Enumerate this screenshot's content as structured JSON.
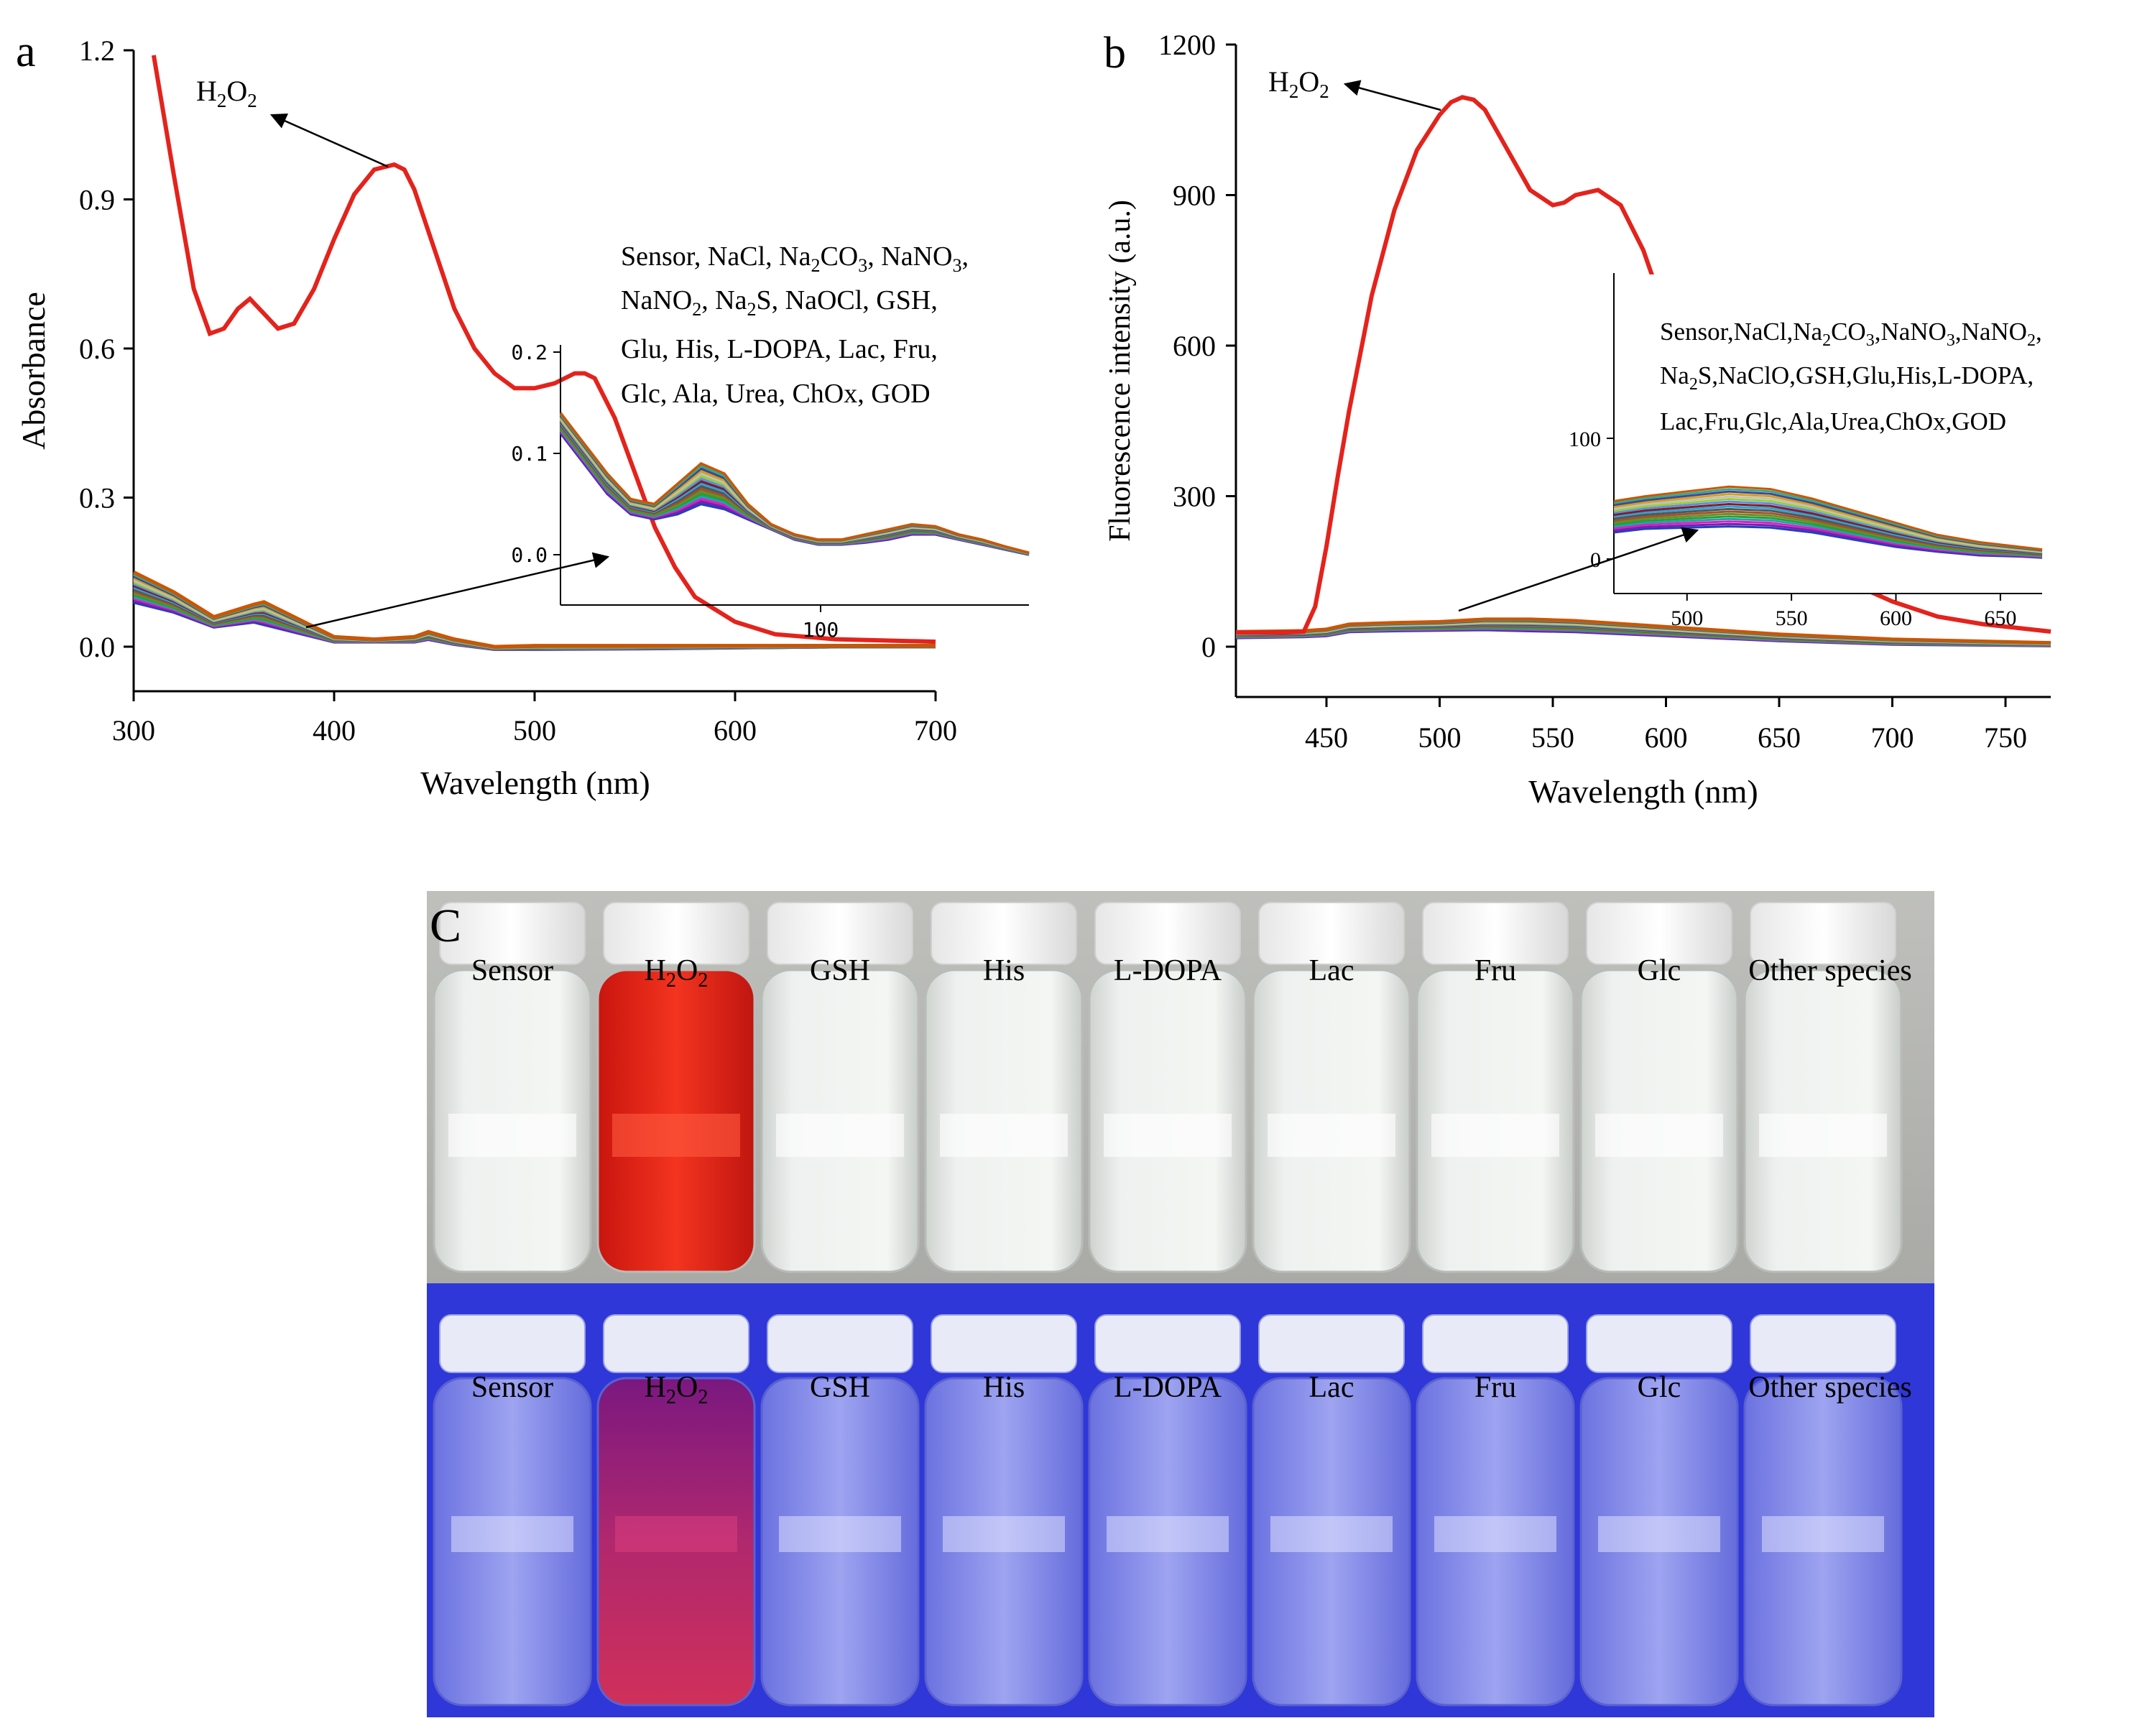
{
  "colors": {
    "h2o2": "#e3231c",
    "interferents": [
      "#1f3fbf",
      "#7a1fa8",
      "#e01cc8",
      "#1aa7a7",
      "#2c9a3c",
      "#6b8e23",
      "#a0522d",
      "#555555",
      "#29a3d8",
      "#8b1a1a",
      "#5a8dee",
      "#9acd32",
      "#c0c0c0",
      "#d4a017",
      "#444499",
      "#33aa88",
      "#cc5500"
    ],
    "vial_glass": "#e8ece9",
    "vial_h2o2": "#e8281c",
    "uv_background": "#2f37d8",
    "uv_h2o2": "#8a1a8a"
  },
  "chart_data": [
    {
      "panel": "a",
      "type": "line",
      "xlabel": "Wavelength (nm)",
      "ylabel": "Absorbance",
      "xlim": [
        300,
        700
      ],
      "ylim": [
        -0.1,
        1.2
      ],
      "xticks": [
        "300",
        "400",
        "500",
        "600",
        "700"
      ],
      "yticks": [
        "0.0",
        "0.3",
        "0.6",
        "0.9",
        "1.2"
      ],
      "series": [
        {
          "name": "H2O2",
          "x": [
            310,
            320,
            330,
            338,
            345,
            352,
            358,
            365,
            372,
            380,
            390,
            400,
            410,
            420,
            430,
            435,
            440,
            450,
            460,
            470,
            480,
            490,
            500,
            510,
            520,
            525,
            530,
            540,
            550,
            560,
            570,
            580,
            600,
            620,
            650,
            700
          ],
          "values": [
            1.19,
            0.95,
            0.72,
            0.63,
            0.64,
            0.68,
            0.7,
            0.67,
            0.64,
            0.65,
            0.72,
            0.82,
            0.91,
            0.96,
            0.97,
            0.96,
            0.92,
            0.8,
            0.68,
            0.6,
            0.55,
            0.52,
            0.52,
            0.53,
            0.55,
            0.55,
            0.54,
            0.46,
            0.35,
            0.24,
            0.16,
            0.1,
            0.05,
            0.025,
            0.015,
            0.01
          ]
        }
      ],
      "interferent_band": {
        "x": [
          300,
          320,
          340,
          360,
          365,
          380,
          400,
          420,
          440,
          447,
          460,
          480,
          500,
          550,
          600,
          650,
          700
        ],
        "low": [
          0.09,
          0.07,
          0.04,
          0.05,
          0.045,
          0.03,
          0.01,
          0.01,
          0.01,
          0.015,
          0.005,
          -0.005,
          -0.005,
          -0.004,
          -0.002,
          0.0,
          0.0
        ],
        "high": [
          0.15,
          0.11,
          0.06,
          0.085,
          0.09,
          0.06,
          0.02,
          0.015,
          0.02,
          0.03,
          0.015,
          0.0,
          0.002,
          0.002,
          0.002,
          0.002,
          0.002
        ]
      },
      "annotation_h2o2": "H2O2",
      "legend_lines": [
        "Sensor, NaCl, Na2CO3, NaNO3,",
        "NaNO2, Na2S, NaOCl, GSH,",
        "Glu, His, L-DOPA,  Lac, Fru,",
        "Glc, Ala, Urea, ChOx, GOD"
      ],
      "inset": {
        "yticks": [
          "0.0",
          "0.1",
          "0.2"
        ],
        "xticks": [
          "100"
        ],
        "x": [
          0,
          10,
          20,
          30,
          40,
          50,
          60,
          70,
          80,
          90,
          100,
          110,
          120,
          130,
          140,
          150,
          160,
          170,
          180,
          190,
          200
        ],
        "low": [
          0.12,
          0.09,
          0.06,
          0.04,
          0.035,
          0.04,
          0.05,
          0.045,
          0.035,
          0.025,
          0.015,
          0.01,
          0.01,
          0.012,
          0.015,
          0.02,
          0.02,
          0.015,
          0.01,
          0.005,
          0.0
        ],
        "high": [
          0.14,
          0.11,
          0.08,
          0.055,
          0.05,
          0.07,
          0.09,
          0.08,
          0.05,
          0.03,
          0.02,
          0.015,
          0.015,
          0.02,
          0.025,
          0.03,
          0.028,
          0.02,
          0.015,
          0.008,
          0.002
        ]
      }
    },
    {
      "panel": "b",
      "type": "line",
      "xlabel": "Wavelength (nm)",
      "ylabel": "Fluorescence intensity (a.u.)",
      "xlim": [
        410,
        770
      ],
      "ylim": [
        -100,
        1200
      ],
      "xticks": [
        "450",
        "500",
        "550",
        "600",
        "650",
        "700",
        "750"
      ],
      "yticks": [
        "0",
        "300",
        "600",
        "900",
        "1200"
      ],
      "series": [
        {
          "name": "H2O2",
          "x": [
            410,
            430,
            440,
            445,
            450,
            455,
            460,
            470,
            480,
            490,
            500,
            505,
            510,
            515,
            520,
            530,
            540,
            550,
            555,
            560,
            570,
            580,
            590,
            600,
            620,
            640,
            660,
            680,
            700,
            720,
            740,
            770
          ],
          "values": [
            28,
            28,
            30,
            80,
            200,
            340,
            470,
            700,
            870,
            990,
            1060,
            1085,
            1095,
            1090,
            1070,
            990,
            910,
            880,
            885,
            900,
            910,
            880,
            790,
            660,
            450,
            300,
            200,
            130,
            90,
            60,
            45,
            30
          ]
        }
      ],
      "interferent_band": {
        "x": [
          410,
          440,
          450,
          460,
          480,
          500,
          520,
          540,
          560,
          600,
          650,
          700,
          770
        ],
        "low": [
          18,
          20,
          22,
          30,
          32,
          33,
          34,
          32,
          30,
          22,
          12,
          5,
          2
        ],
        "high": [
          30,
          32,
          35,
          45,
          48,
          50,
          55,
          55,
          52,
          40,
          25,
          15,
          8
        ]
      },
      "annotation_h2o2": "H2O2",
      "legend_lines": [
        "Sensor,NaCl,Na2CO3,NaNO3,NaNO2,",
        "Na2S,NaClO,GSH,Glu,His,L-DOPA,",
        "Lac,Fru,Glc,Ala,Urea,ChOx,GOD"
      ],
      "inset": {
        "xlim": [
          465,
          670
        ],
        "ylim": [
          -20,
          180
        ],
        "xticks": [
          "500",
          "550",
          "600",
          "650"
        ],
        "yticks": [
          "0",
          "100"
        ],
        "x": [
          465,
          480,
          500,
          520,
          540,
          560,
          580,
          600,
          620,
          640,
          660,
          670
        ],
        "low": [
          22,
          25,
          26,
          27,
          26,
          22,
          16,
          10,
          6,
          3,
          2,
          1
        ],
        "high": [
          48,
          52,
          56,
          60,
          58,
          50,
          40,
          30,
          20,
          14,
          10,
          8
        ]
      }
    }
  ],
  "panel_c": {
    "label": "C",
    "vials": [
      "Sensor",
      "H2O2",
      "GSH",
      "His",
      "L-DOPA",
      "Lac",
      "Fru",
      "Glc",
      "Other species"
    ]
  },
  "panel_labels": {
    "a": "a",
    "b": "b"
  }
}
